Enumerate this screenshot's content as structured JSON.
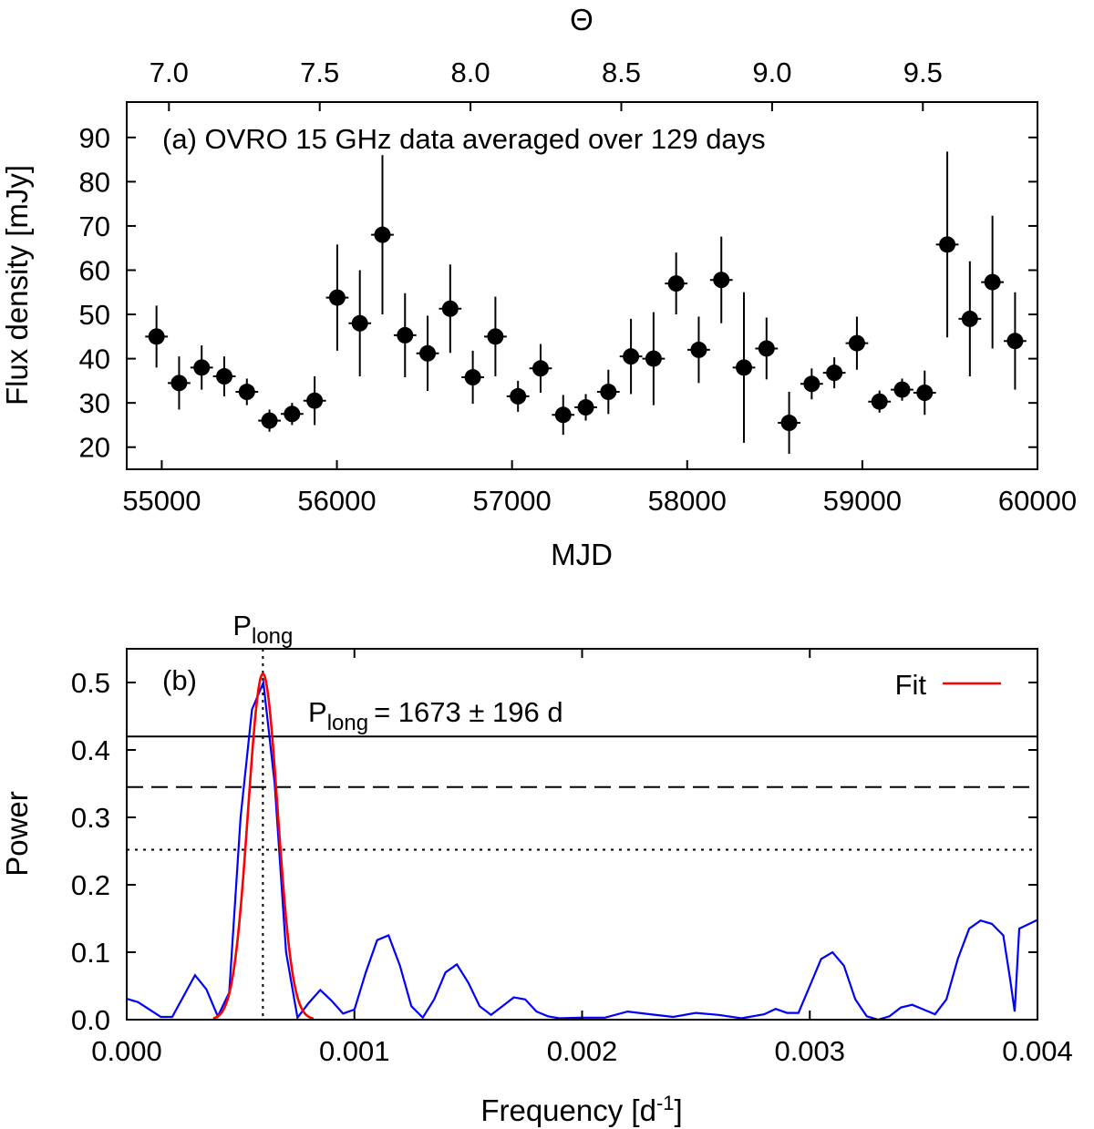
{
  "chart_data": [
    {
      "type": "scatter",
      "panel_label": "(a) OVRO 15 GHz data averaged over 129 days",
      "xlabel": "MJD",
      "ylabel": "Flux density [mJy]",
      "top_xlabel": "Θ",
      "xlim": [
        54800,
        60000
      ],
      "ylim": [
        15,
        98
      ],
      "top_xlim": [
        6.86,
        9.88
      ],
      "xticks": [
        55000,
        56000,
        57000,
        58000,
        59000,
        60000
      ],
      "yticks": [
        20,
        30,
        40,
        50,
        60,
        70,
        80,
        90
      ],
      "top_xticks": [
        "7.0",
        "7.5",
        "8.0",
        "8.5",
        "9.0",
        "9.5"
      ],
      "x_error": 64.5,
      "grid": false,
      "points": [
        {
          "x": 54970,
          "y": 45.0,
          "err": 7.0
        },
        {
          "x": 55099,
          "y": 34.5,
          "err": 6.0
        },
        {
          "x": 55228,
          "y": 38.0,
          "err": 5.0
        },
        {
          "x": 55357,
          "y": 36.0,
          "err": 4.5
        },
        {
          "x": 55486,
          "y": 32.5,
          "err": 3.0
        },
        {
          "x": 55615,
          "y": 26.0,
          "err": 2.5
        },
        {
          "x": 55744,
          "y": 27.5,
          "err": 2.5
        },
        {
          "x": 55873,
          "y": 30.5,
          "err": 5.5
        },
        {
          "x": 56002,
          "y": 53.8,
          "err": 12.0
        },
        {
          "x": 56131,
          "y": 48.0,
          "err": 12.0
        },
        {
          "x": 56260,
          "y": 68.0,
          "err": 18.0
        },
        {
          "x": 56389,
          "y": 45.3,
          "err": 9.5
        },
        {
          "x": 56518,
          "y": 41.2,
          "err": 8.5
        },
        {
          "x": 56647,
          "y": 51.3,
          "err": 10.0
        },
        {
          "x": 56776,
          "y": 35.8,
          "err": 6.0
        },
        {
          "x": 56905,
          "y": 45.0,
          "err": 9.0
        },
        {
          "x": 57034,
          "y": 31.5,
          "err": 3.5
        },
        {
          "x": 57163,
          "y": 37.8,
          "err": 5.5
        },
        {
          "x": 57292,
          "y": 27.3,
          "err": 4.5
        },
        {
          "x": 57421,
          "y": 29.0,
          "err": 3.0
        },
        {
          "x": 57550,
          "y": 32.5,
          "err": 5.0
        },
        {
          "x": 57679,
          "y": 40.5,
          "err": 8.5
        },
        {
          "x": 57808,
          "y": 40.0,
          "err": 10.5
        },
        {
          "x": 57937,
          "y": 57.0,
          "err": 7.0
        },
        {
          "x": 58066,
          "y": 42.0,
          "err": 7.5
        },
        {
          "x": 58195,
          "y": 57.8,
          "err": 9.8
        },
        {
          "x": 58324,
          "y": 38.0,
          "err": 17.0
        },
        {
          "x": 58453,
          "y": 42.3,
          "err": 7.0
        },
        {
          "x": 58582,
          "y": 25.5,
          "err": 7.0
        },
        {
          "x": 58711,
          "y": 34.3,
          "err": 3.5
        },
        {
          "x": 58840,
          "y": 36.8,
          "err": 3.5
        },
        {
          "x": 58969,
          "y": 43.5,
          "err": 6.0
        },
        {
          "x": 59098,
          "y": 30.3,
          "err": 2.5
        },
        {
          "x": 59227,
          "y": 33.0,
          "err": 2.5
        },
        {
          "x": 59356,
          "y": 32.3,
          "err": 5.0
        },
        {
          "x": 59485,
          "y": 65.8,
          "err": 21.0
        },
        {
          "x": 59614,
          "y": 49.0,
          "err": 13.0
        },
        {
          "x": 59743,
          "y": 57.3,
          "err": 15.0
        },
        {
          "x": 59872,
          "y": 44.0,
          "err": 11.0
        }
      ]
    },
    {
      "type": "line",
      "panel_label": "(b)",
      "xlabel": "Frequency [d",
      "xlabel_sup": "-1",
      "xlabel_end": "]",
      "ylabel": "Power",
      "xlim": [
        0,
        0.004
      ],
      "ylim": [
        0,
        0.55
      ],
      "xticks": [
        "0.000",
        "0.001",
        "0.002",
        "0.003",
        "0.004"
      ],
      "yticks": [
        "0.0",
        "0.1",
        "0.2",
        "0.3",
        "0.4",
        "0.5"
      ],
      "peak_label": "P",
      "peak_label_sub": "long",
      "peak_frequency": 0.000598,
      "period_annotation": "P",
      "period_annotation_sub": "long",
      "period_annotation_value": "= 1673 ± 196 d",
      "legend": {
        "placement": "top-right",
        "entries": [
          "Fit"
        ]
      },
      "significance_levels": [
        {
          "power": 0.42,
          "style": "solid"
        },
        {
          "power": 0.345,
          "style": "dashed"
        },
        {
          "power": 0.252,
          "style": "dotted"
        }
      ],
      "series": [
        {
          "color": "#0000ff",
          "x": [
            0.0,
            5e-05,
            0.0001,
            0.00015,
            0.0002,
            0.00025,
            0.0003,
            0.00035,
            0.0004,
            0.00045,
            0.0005,
            0.00055,
            0.0006,
            0.00065,
            0.0007,
            0.00075,
            0.0008,
            0.00085,
            0.0009,
            0.00095,
            0.001,
            0.00105,
            0.0011,
            0.00115,
            0.0012,
            0.00125,
            0.0013,
            0.00135,
            0.0014,
            0.00145,
            0.0015,
            0.00155,
            0.0016,
            0.00165,
            0.0017,
            0.00175,
            0.0018,
            0.00185,
            0.0019,
            0.002,
            0.0021,
            0.0022,
            0.0023,
            0.0024,
            0.0025,
            0.0026,
            0.0027,
            0.0028,
            0.00285,
            0.0029,
            0.00295,
            0.003,
            0.00305,
            0.0031,
            0.00315,
            0.0032,
            0.00325,
            0.0033,
            0.00335,
            0.0034,
            0.00345,
            0.0035,
            0.00355,
            0.0036,
            0.00365,
            0.0037,
            0.00375,
            0.0038,
            0.00385,
            0.00388,
            0.0039,
            0.00392,
            0.004
          ],
          "y": [
            0.031,
            0.026,
            0.015,
            0.004,
            0.004,
            0.035,
            0.066,
            0.045,
            0.005,
            0.04,
            0.3,
            0.46,
            0.5,
            0.35,
            0.1,
            0.003,
            0.025,
            0.044,
            0.028,
            0.009,
            0.015,
            0.07,
            0.118,
            0.125,
            0.08,
            0.02,
            0.003,
            0.03,
            0.07,
            0.082,
            0.055,
            0.02,
            0.007,
            0.02,
            0.033,
            0.03,
            0.012,
            0.005,
            0.002,
            0.003,
            0.003,
            0.012,
            0.008,
            0.004,
            0.01,
            0.007,
            0.002,
            0.008,
            0.016,
            0.01,
            0.01,
            0.05,
            0.09,
            0.1,
            0.08,
            0.03,
            0.005,
            0.0,
            0.005,
            0.018,
            0.022,
            0.015,
            0.008,
            0.03,
            0.09,
            0.135,
            0.147,
            0.142,
            0.125,
            0.06,
            0.012,
            0.135,
            0.148
          ]
        },
        {
          "name": "Fit",
          "color": "#ff0000",
          "model": "gaussian",
          "amplitude": 0.513,
          "center": 0.000598,
          "sigma": 6.5e-05
        }
      ]
    }
  ]
}
